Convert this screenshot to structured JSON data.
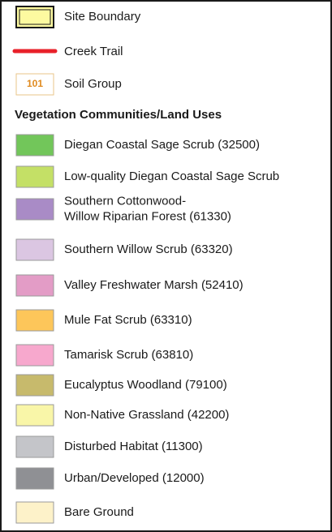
{
  "legend": {
    "site_boundary": {
      "label": "Site Boundary",
      "fill": "#fdfaa0",
      "stroke": "#1a1a1a"
    },
    "creek_trail": {
      "label": "Creek Trail",
      "color": "#e8202a"
    },
    "soil_group": {
      "label": "Soil Group",
      "symbol": "101",
      "color": "#e08a1e"
    },
    "heading": "Vegetation Communities/Land Uses",
    "items": [
      {
        "lines": [
          "Diegan Coastal Sage Scrub (32500)"
        ],
        "color": "#72c65a"
      },
      {
        "lines": [
          "Low-quality Diegan Coastal Sage Scrub"
        ],
        "color": "#c4e066"
      },
      {
        "lines": [
          "Southern Cottonwood-",
          "Willow Riparian Forest (61330)"
        ],
        "color": "#a98bc6"
      },
      {
        "lines": [
          "Southern Willow Scrub (63320)"
        ],
        "color": "#dbc6e2"
      },
      {
        "lines": [
          "Valley Freshwater Marsh (52410)"
        ],
        "color": "#e39cc6"
      },
      {
        "lines": [
          "Mule Fat Scrub (63310)"
        ],
        "color": "#fdc65a"
      },
      {
        "lines": [
          "Tamarisk Scrub (63810)"
        ],
        "color": "#f7a8cd"
      },
      {
        "lines": [
          "Eucalyptus Woodland (79100)"
        ],
        "color": "#c7ba6c"
      },
      {
        "lines": [
          "Non-Native Grassland (42200)"
        ],
        "color": "#f9f6a8"
      },
      {
        "lines": [
          "Disturbed Habitat (11300)"
        ],
        "color": "#c4c5c9"
      },
      {
        "lines": [
          "Urban/Developed (12000)"
        ],
        "color": "#8f9094"
      },
      {
        "lines": [
          "Bare Ground"
        ],
        "color": "#fdf2c9"
      }
    ]
  }
}
